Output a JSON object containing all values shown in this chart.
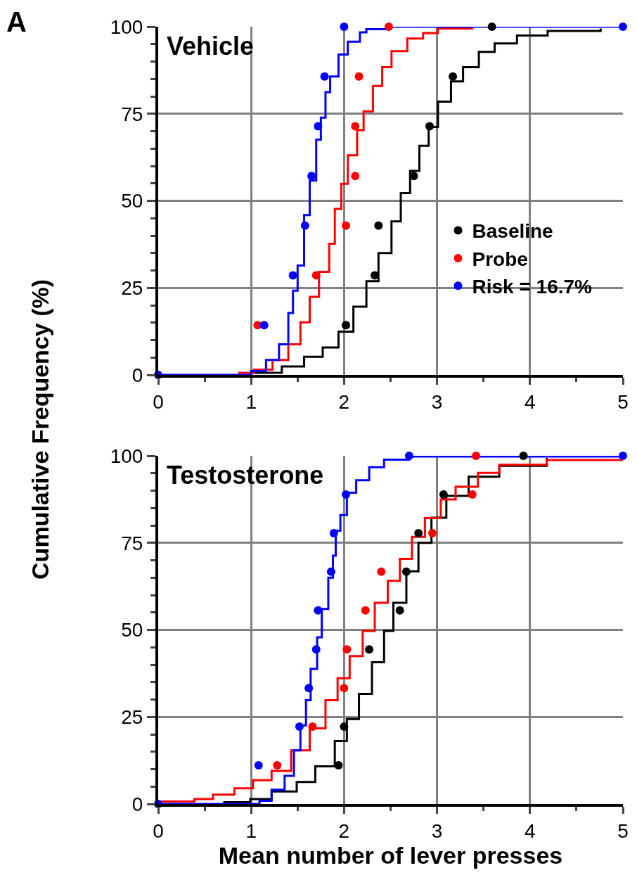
{
  "chart_data": [
    {
      "type": "step",
      "title": "Vehicle",
      "ylabel": "Cumulative Frequency (%)",
      "annotations": [
        "A"
      ],
      "xlim": [
        0,
        5
      ],
      "xticks": [
        0,
        1,
        2,
        3,
        4,
        5
      ],
      "ylim": [
        0,
        100
      ],
      "yticks": [
        0,
        25,
        50,
        75,
        100
      ],
      "grid": true,
      "legend": "right",
      "series": [
        {
          "marker": "none",
          "color": "#000000",
          "x": [
            1.01,
            1.33,
            1.57,
            1.77,
            1.94,
            2.1,
            2.24,
            2.37,
            2.51,
            2.61,
            2.71,
            2.81,
            2.91,
            3.01,
            3.15,
            3.28,
            3.45,
            3.62,
            3.86,
            4.19,
            4.76
          ],
          "values": [
            0.6,
            2.4,
            5.2,
            7.9,
            12.4,
            19.6,
            26.9,
            35,
            44.1,
            52.2,
            58.6,
            65.8,
            71.2,
            78.5,
            84.3,
            88.4,
            92.8,
            95.2,
            97.5,
            98.8,
            99.5
          ]
        },
        {
          "marker": "none",
          "color": "#ff0000",
          "x": [
            0.86,
            1.03,
            1.23,
            1.4,
            1.53,
            1.63,
            1.73,
            1.84,
            1.9,
            1.97,
            2.04,
            2.14,
            2.21,
            2.31,
            2.41,
            2.51,
            2.68,
            2.85,
            3.01,
            3.38
          ],
          "values": [
            0.6,
            1.5,
            4.3,
            8.8,
            15.1,
            22.4,
            29.6,
            37.7,
            47.7,
            54.9,
            63.1,
            70.3,
            75.7,
            83,
            88.4,
            93,
            96.6,
            98.2,
            99.5,
            99.7
          ]
        },
        {
          "marker": "none",
          "color": "#0000ff",
          "x": [
            0,
            0.91,
            1.0,
            1.16,
            1.3,
            1.4,
            1.45,
            1.5,
            1.57,
            1.63,
            1.7,
            1.75,
            1.8,
            1.85,
            1.94,
            2.04,
            2.17,
            2.24,
            2.47,
            5
          ],
          "values": [
            0,
            0,
            1.1,
            4.3,
            8.8,
            17.8,
            24.2,
            31.4,
            45.9,
            55.8,
            67.6,
            73.9,
            81.2,
            85.7,
            92,
            95.7,
            98.4,
            99.3,
            100,
            100
          ]
        },
        {
          "type": "scatter",
          "marker": "circle",
          "name": "Baseline",
          "color": "#000000",
          "x": [
            2.02,
            2.33,
            2.37,
            2.75,
            2.92,
            3.17,
            3.59
          ],
          "values": [
            14.3,
            28.6,
            42.9,
            57.1,
            71.4,
            85.7,
            100
          ]
        },
        {
          "type": "scatter",
          "marker": "circle",
          "name": "Probe",
          "color": "#ff0000",
          "x": [
            1.07,
            1.7,
            2.02,
            2.12,
            2.12,
            2.16,
            2.48
          ],
          "values": [
            14.3,
            28.6,
            42.9,
            57.1,
            71.4,
            85.7,
            100
          ]
        },
        {
          "type": "scatter",
          "marker": "circle",
          "name": "Risk = 16.7%",
          "color": "#0000ff",
          "x": [
            0,
            1.14,
            1.45,
            1.58,
            1.65,
            1.72,
            1.79,
            2.0,
            5
          ],
          "values": [
            0,
            14.3,
            28.6,
            42.9,
            57.1,
            71.4,
            85.7,
            100,
            100
          ]
        }
      ]
    },
    {
      "type": "step",
      "title": "Testosterone",
      "xlabel": "Mean number of lever presses",
      "xlim": [
        0,
        5
      ],
      "xticks": [
        0,
        1,
        2,
        3,
        4,
        5
      ],
      "ylim": [
        0,
        100
      ],
      "yticks": [
        0,
        25,
        50,
        75,
        100
      ],
      "grid": true,
      "series": [
        {
          "marker": "none",
          "color": "#000000",
          "x": [
            0.7,
            0.99,
            1.22,
            1.49,
            1.69,
            1.9,
            2.03,
            2.16,
            2.3,
            2.43,
            2.53,
            2.67,
            2.8,
            2.94,
            3.1,
            3.34,
            3.67,
            4.18
          ],
          "values": [
            0.5,
            1.4,
            3.6,
            6.3,
            10.8,
            18.1,
            24.4,
            31.6,
            40.7,
            49.7,
            57.8,
            66.8,
            75,
            82.2,
            88.5,
            94,
            97.1,
            99.4
          ]
        },
        {
          "marker": "none",
          "color": "#ff0000",
          "x": [
            0,
            0.39,
            0.59,
            0.82,
            1.02,
            1.22,
            1.43,
            1.63,
            1.8,
            1.93,
            2.06,
            2.2,
            2.33,
            2.47,
            2.6,
            2.73,
            2.87,
            3.04,
            3.2,
            3.44,
            3.67,
            4.18,
            5
          ],
          "values": [
            0.7,
            1.4,
            2.7,
            4.5,
            6.8,
            9.5,
            15.4,
            21.7,
            29.8,
            36.1,
            42.5,
            49.7,
            57.8,
            64.1,
            70.4,
            76.7,
            82.1,
            87.5,
            91.1,
            95.1,
            97.4,
            98.8,
            99.4
          ]
        },
        {
          "marker": "none",
          "color": "#0000ff",
          "x": [
            0,
            0.92,
            1.09,
            1.22,
            1.36,
            1.46,
            1.53,
            1.59,
            1.64,
            1.71,
            1.76,
            1.83,
            1.88,
            1.91,
            1.96,
            2.03,
            2.13,
            2.27,
            2.43,
            2.7,
            5
          ],
          "values": [
            0,
            0,
            0.9,
            4.1,
            8.1,
            15.4,
            22.6,
            29.8,
            38.8,
            47.9,
            56,
            65,
            71.3,
            78.5,
            83,
            89.4,
            93,
            96.7,
            98.9,
            99.8,
            100
          ]
        },
        {
          "type": "scatter",
          "marker": "circle",
          "color": "#000000",
          "x": [
            1.94,
            2.0,
            2.27,
            2.6,
            2.67,
            2.8,
            3.07,
            3.93
          ],
          "values": [
            11.1,
            22.2,
            44.4,
            55.6,
            66.7,
            77.8,
            88.9,
            100
          ]
        },
        {
          "type": "scatter",
          "marker": "circle",
          "color": "#ff0000",
          "x": [
            1.28,
            1.66,
            2.0,
            2.03,
            2.23,
            2.4,
            2.95,
            3.38,
            3.42
          ],
          "values": [
            11.1,
            22.2,
            33.3,
            44.4,
            55.6,
            66.7,
            77.8,
            88.9,
            100
          ]
        },
        {
          "type": "scatter",
          "marker": "circle",
          "color": "#0000ff",
          "x": [
            0,
            1.08,
            1.52,
            1.62,
            1.7,
            1.72,
            1.86,
            1.89,
            2.02,
            2.7,
            5
          ],
          "values": [
            0,
            11.1,
            22.2,
            33.3,
            44.4,
            55.6,
            66.7,
            77.8,
            88.9,
            100,
            100
          ]
        }
      ]
    }
  ]
}
